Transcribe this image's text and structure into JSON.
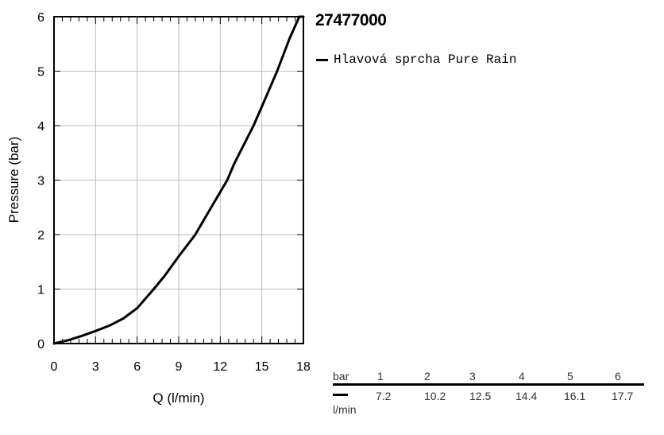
{
  "chart_data": {
    "type": "line",
    "title": "",
    "xlabel": "Q (l/min)",
    "ylabel": "Pressure (bar)",
    "xlim": [
      0,
      18
    ],
    "ylim": [
      0,
      6
    ],
    "xticks": [
      "0",
      "3",
      "6",
      "9",
      "12",
      "15",
      "18"
    ],
    "yticks": [
      "0",
      "1",
      "2",
      "3",
      "4",
      "5",
      "6"
    ],
    "grid": true,
    "series": [
      {
        "name": "Hlavová sprcha Pure Rain",
        "color": "#000000",
        "x": [
          0,
          1,
          2,
          3,
          4,
          5,
          6,
          7.2,
          8,
          9,
          10.2,
          11,
          12.5,
          13,
          14.4,
          15,
          16.1,
          17,
          17.7,
          18
        ],
        "y": [
          0,
          0.06,
          0.14,
          0.23,
          0.33,
          0.46,
          0.65,
          1,
          1.25,
          1.6,
          2,
          2.35,
          3,
          3.3,
          4,
          4.35,
          5,
          5.6,
          6,
          6
        ]
      }
    ]
  },
  "product": {
    "code": "27477000"
  },
  "legend": {
    "label": "Hlavová sprcha Pure Rain"
  },
  "flow_table": {
    "row1_label": "bar",
    "row2_label": "l/min",
    "bar": [
      "1",
      "2",
      "3",
      "4",
      "5",
      "6"
    ],
    "lmin": [
      "7.2",
      "10.2",
      "12.5",
      "14.4",
      "16.1",
      "17.7"
    ]
  }
}
